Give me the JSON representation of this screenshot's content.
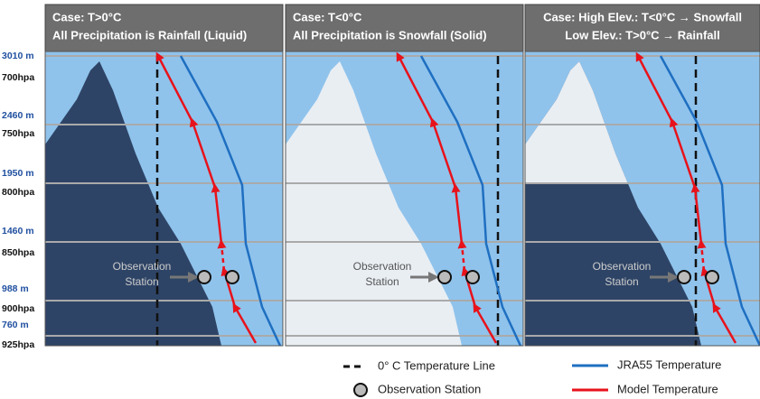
{
  "panels": [
    {
      "header": [
        "Case: T>0°C",
        "All Precipitation is Rainfall (Liquid)"
      ],
      "station_label": [
        "Observation",
        "Station"
      ]
    },
    {
      "header": [
        "Case: T<0°C",
        "All Precipitation is Snowfall (Solid)"
      ],
      "station_label": [
        "Observation",
        "Station"
      ]
    },
    {
      "header": [
        "Case: High Elev.: T<0°C → Snowfall",
        "Low Elev.: T>0°C → Rainfall"
      ],
      "station_label": [
        "Observation",
        "Station"
      ]
    }
  ],
  "y_axis": {
    "labels": [
      "3010 m",
      "700hpa",
      "2460 m",
      "750hpa",
      "1950 m",
      "800hpa",
      "1460 m",
      "850hpa",
      "988 m",
      "900hpa",
      "760 m",
      "925hpa"
    ]
  },
  "legend": {
    "items": [
      "0° C Temperature Line",
      "JRA55 Temperature",
      "Observation Station",
      "Model Temperature"
    ]
  }
}
